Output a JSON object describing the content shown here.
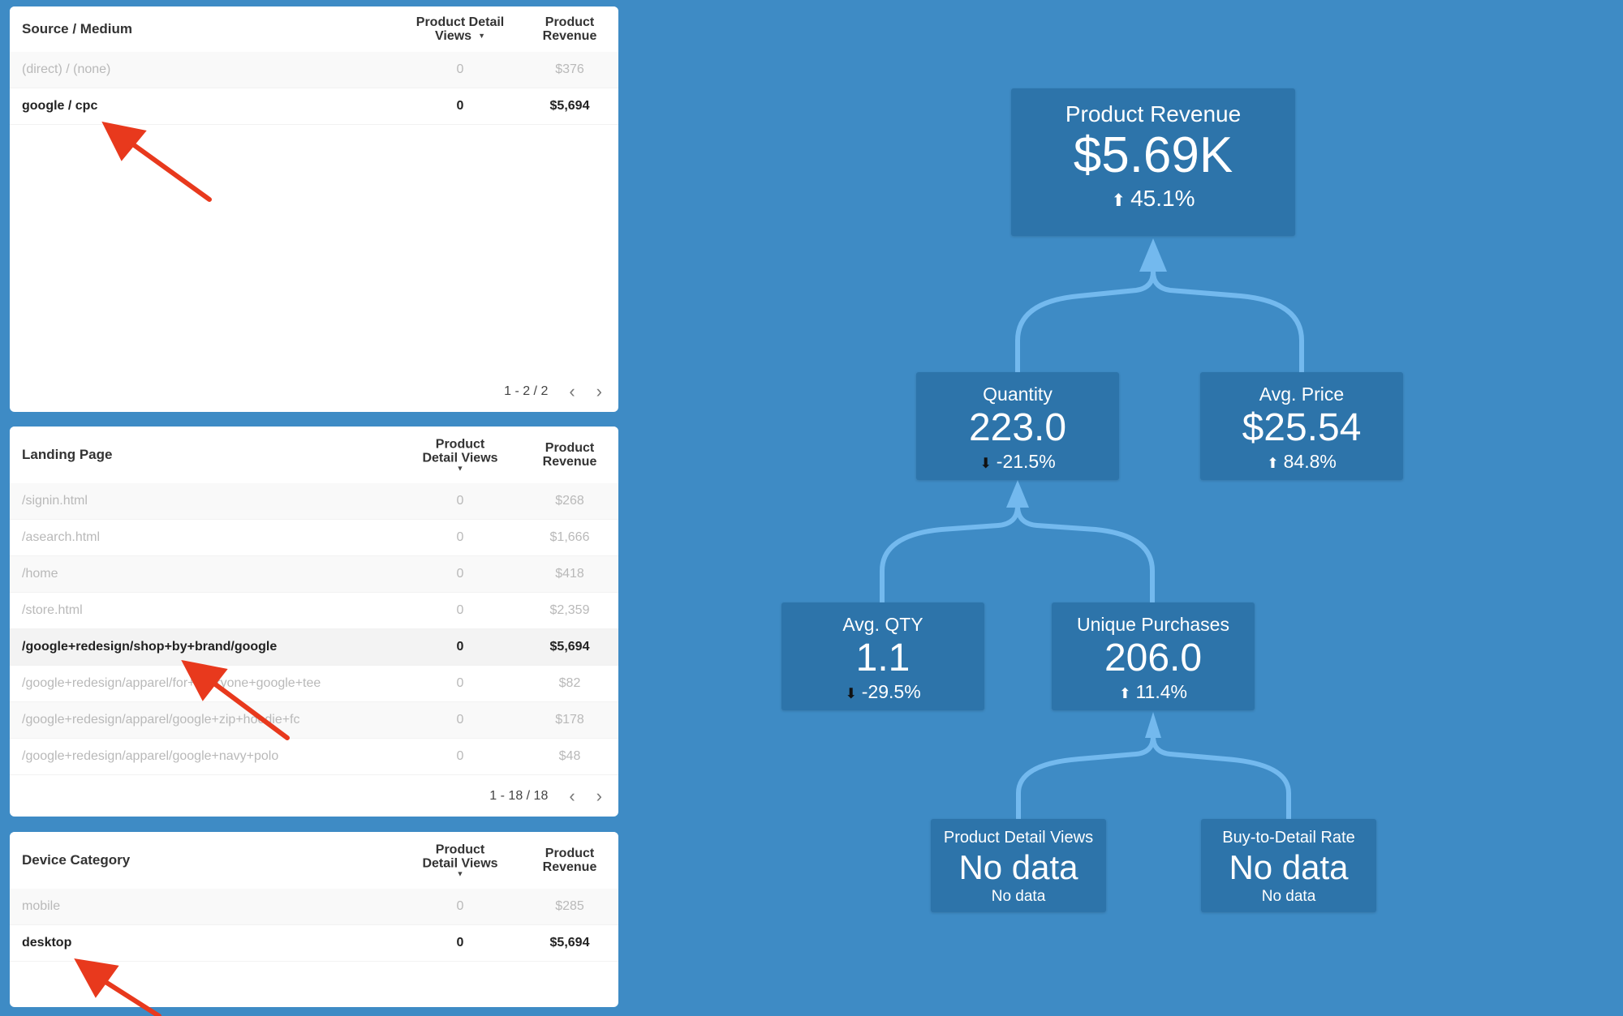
{
  "tables": {
    "source_medium": {
      "dimension_header": "Source / Medium",
      "col1_header": "Product Detail Views",
      "col2_header": "Product Revenue",
      "rows": [
        {
          "dim": "(direct) / (none)",
          "v1": "0",
          "v2": "$376"
        },
        {
          "dim": "google / cpc",
          "v1": "0",
          "v2": "$5,694"
        }
      ],
      "pagination": "1 - 2 / 2"
    },
    "landing_page": {
      "dimension_header": "Landing Page",
      "col1_header": "Product Detail Views",
      "col2_header": "Product Revenue",
      "rows": [
        {
          "dim": "/signin.html",
          "v1": "0",
          "v2": "$268"
        },
        {
          "dim": "/asearch.html",
          "v1": "0",
          "v2": "$1,666"
        },
        {
          "dim": "/home",
          "v1": "0",
          "v2": "$418"
        },
        {
          "dim": "/store.html",
          "v1": "0",
          "v2": "$2,359"
        },
        {
          "dim": "/google+redesign/shop+by+brand/google",
          "v1": "0",
          "v2": "$5,694"
        },
        {
          "dim": "/google+redesign/apparel/for+everyone+google+tee",
          "v1": "0",
          "v2": "$82"
        },
        {
          "dim": "/google+redesign/apparel/google+zip+hoodie+fc",
          "v1": "0",
          "v2": "$178"
        },
        {
          "dim": "/google+redesign/apparel/google+navy+polo",
          "v1": "0",
          "v2": "$48"
        }
      ],
      "pagination": "1 - 18 / 18"
    },
    "device_category": {
      "dimension_header": "Device Category",
      "col1_header": "Product Detail Views",
      "col2_header": "Product Revenue",
      "rows": [
        {
          "dim": "mobile",
          "v1": "0",
          "v2": "$285"
        },
        {
          "dim": "desktop",
          "v1": "0",
          "v2": "$5,694"
        }
      ]
    }
  },
  "sort_indicator": "▼",
  "pager_icons": {
    "prev": "‹",
    "next": "›"
  },
  "tree": {
    "product_revenue": {
      "label": "Product Revenue",
      "value": "$5.69K",
      "delta": "45.1%",
      "direction": "up"
    },
    "quantity": {
      "label": "Quantity",
      "value": "223.0",
      "delta": "-21.5%",
      "direction": "down"
    },
    "avg_price": {
      "label": "Avg. Price",
      "value": "$25.54",
      "delta": "84.8%",
      "direction": "up"
    },
    "avg_qty": {
      "label": "Avg. QTY",
      "value": "1.1",
      "delta": "-29.5%",
      "direction": "down"
    },
    "unique_purchases": {
      "label": "Unique Purchases",
      "value": "206.0",
      "delta": "11.4%",
      "direction": "up"
    },
    "product_detail_views": {
      "label": "Product Detail Views",
      "value": "No data",
      "delta": "No data"
    },
    "buy_to_detail_rate": {
      "label": "Buy-to-Detail Rate",
      "value": "No data",
      "delta": "No data"
    }
  },
  "icons": {
    "up": "⬆",
    "down": "⬇"
  },
  "colors": {
    "background": "#3e8bc5",
    "node": "#2d74aa",
    "connector": "#73b9ee",
    "annotation": "#e8391d"
  }
}
